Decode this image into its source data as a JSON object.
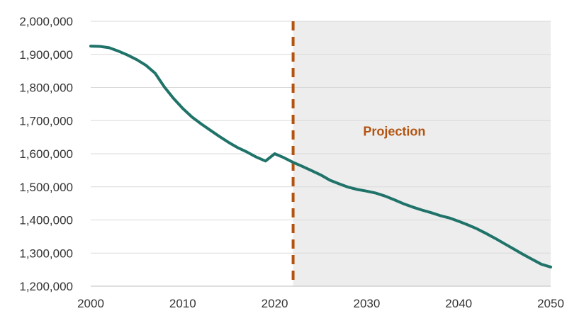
{
  "chart_data": {
    "type": "line",
    "xlim": [
      2000,
      2050
    ],
    "ylim": [
      1200000,
      2000000
    ],
    "x_ticks": [
      2000,
      2010,
      2020,
      2030,
      2040,
      2050
    ],
    "x_tick_labels": [
      "2000",
      "2010",
      "2020",
      "2030",
      "2040",
      "2050"
    ],
    "y_ticks": [
      1200000,
      1300000,
      1400000,
      1500000,
      1600000,
      1700000,
      1800000,
      1900000,
      2000000
    ],
    "y_tick_labels": [
      "1,200,000",
      "1,300,000",
      "1,400,000",
      "1,500,000",
      "1,600,000",
      "1,700,000",
      "1,800,000",
      "1,900,000",
      "2,000,000"
    ],
    "grid": "horizontal",
    "projection": {
      "start_year": 2022,
      "end_year": 2050,
      "label": "Projection",
      "label_x": 2033,
      "label_y": 1655000,
      "shade_color": "#ededed",
      "divider_color": "#b3530f"
    },
    "series": [
      {
        "color": "#1f7369",
        "points": [
          [
            2000,
            1925000
          ],
          [
            2001,
            1924000
          ],
          [
            2002,
            1920000
          ],
          [
            2003,
            1910000
          ],
          [
            2004,
            1898000
          ],
          [
            2005,
            1884000
          ],
          [
            2006,
            1867000
          ],
          [
            2007,
            1843000
          ],
          [
            2008,
            1802000
          ],
          [
            2009,
            1767000
          ],
          [
            2010,
            1737000
          ],
          [
            2011,
            1711000
          ],
          [
            2012,
            1690000
          ],
          [
            2013,
            1671000
          ],
          [
            2014,
            1652000
          ],
          [
            2015,
            1634000
          ],
          [
            2016,
            1618000
          ],
          [
            2017,
            1605000
          ],
          [
            2018,
            1590000
          ],
          [
            2019,
            1578000
          ],
          [
            2020,
            1600000
          ],
          [
            2021,
            1588000
          ],
          [
            2022,
            1574000
          ],
          [
            2023,
            1562000
          ],
          [
            2024,
            1549000
          ],
          [
            2025,
            1536000
          ],
          [
            2026,
            1520000
          ],
          [
            2027,
            1509000
          ],
          [
            2028,
            1499000
          ],
          [
            2029,
            1492000
          ],
          [
            2030,
            1487000
          ],
          [
            2031,
            1481000
          ],
          [
            2032,
            1472000
          ],
          [
            2033,
            1461000
          ],
          [
            2034,
            1449000
          ],
          [
            2035,
            1439000
          ],
          [
            2036,
            1430000
          ],
          [
            2037,
            1422000
          ],
          [
            2038,
            1413000
          ],
          [
            2039,
            1406000
          ],
          [
            2040,
            1396000
          ],
          [
            2041,
            1385000
          ],
          [
            2042,
            1373000
          ],
          [
            2043,
            1359000
          ],
          [
            2044,
            1344000
          ],
          [
            2045,
            1328000
          ],
          [
            2046,
            1312000
          ],
          [
            2047,
            1296000
          ],
          [
            2048,
            1281000
          ],
          [
            2049,
            1266000
          ],
          [
            2050,
            1258000
          ]
        ]
      }
    ]
  }
}
